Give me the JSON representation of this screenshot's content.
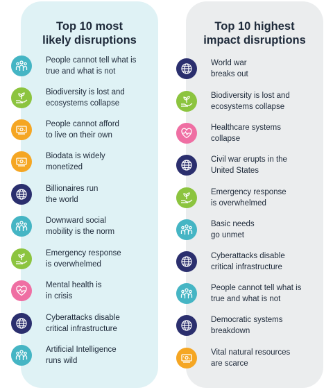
{
  "colors": {
    "people": "#45b5c4",
    "nature": "#8cc43f",
    "money": "#f5a623",
    "globe": "#2b2f6e",
    "health": "#ef6fa3",
    "left_panel": "#dff2f5",
    "right_panel": "#ebedee"
  },
  "left": {
    "title": "Top 10 most\nlikely disruptions",
    "items": [
      {
        "icon": "people-icon",
        "text": "People cannot tell what is\ntrue and what is not"
      },
      {
        "icon": "plant-hand-icon",
        "text": "Biodiversity is lost and\necosystems collapse"
      },
      {
        "icon": "money-icon",
        "text": "People cannot afford\nto live on their own"
      },
      {
        "icon": "money-icon",
        "text": "Biodata is widely\nmonetized"
      },
      {
        "icon": "globe-icon",
        "text": "Billionaires run\nthe world"
      },
      {
        "icon": "people-icon",
        "text": "Downward social\nmobility is the norm"
      },
      {
        "icon": "plant-hand-icon",
        "text": "Emergency response\nis overwhelmed"
      },
      {
        "icon": "heart-pulse-icon",
        "text": "Mental health is\nin crisis"
      },
      {
        "icon": "globe-icon",
        "text": "Cyberattacks disable\ncritical infrastructure"
      },
      {
        "icon": "people-icon",
        "text": "Artificial Intelligence\nruns wild"
      }
    ]
  },
  "right": {
    "title": "Top 10 highest\nimpact disruptions",
    "items": [
      {
        "icon": "globe-icon",
        "text": "World war\nbreaks out"
      },
      {
        "icon": "plant-hand-icon",
        "text": "Biodiversity is lost and\necosystems collapse"
      },
      {
        "icon": "heart-pulse-icon",
        "text": "Healthcare systems\ncollapse"
      },
      {
        "icon": "globe-icon",
        "text": "Civil war erupts in the\nUnited States"
      },
      {
        "icon": "plant-hand-icon",
        "text": "Emergency response\nis overwhelmed"
      },
      {
        "icon": "people-icon",
        "text": "Basic needs\ngo unmet"
      },
      {
        "icon": "globe-icon",
        "text": "Cyberattacks disable\ncritical infrastructure"
      },
      {
        "icon": "people-icon",
        "text": "People cannot tell what is\ntrue and what is not"
      },
      {
        "icon": "globe-icon",
        "text": "Democratic systems\nbreakdown"
      },
      {
        "icon": "money-icon",
        "text": "Vital natural resources\nare scarce"
      }
    ]
  }
}
